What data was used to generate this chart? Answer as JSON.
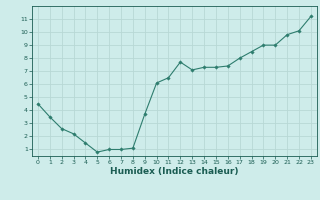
{
  "x": [
    0,
    1,
    2,
    3,
    4,
    5,
    6,
    7,
    8,
    9,
    10,
    11,
    12,
    13,
    14,
    15,
    16,
    17,
    18,
    19,
    20,
    21,
    22,
    23
  ],
  "y": [
    4.5,
    3.5,
    2.6,
    2.2,
    1.5,
    0.8,
    1.0,
    1.0,
    1.1,
    3.7,
    6.1,
    6.5,
    7.7,
    7.1,
    7.3,
    7.3,
    7.4,
    8.0,
    8.5,
    9.0,
    9.0,
    9.8,
    10.1,
    11.2
  ],
  "line_color": "#2e7d6e",
  "marker": "D",
  "marker_size": 1.8,
  "bg_color": "#ceecea",
  "grid_color": "#b8d8d5",
  "axis_label_color": "#1a5c52",
  "xlabel": "Humidex (Indice chaleur)",
  "xlim": [
    -0.5,
    23.5
  ],
  "ylim": [
    0.5,
    12.0
  ],
  "yticks": [
    1,
    2,
    3,
    4,
    5,
    6,
    7,
    8,
    9,
    10,
    11
  ],
  "xticks": [
    0,
    1,
    2,
    3,
    4,
    5,
    6,
    7,
    8,
    9,
    10,
    11,
    12,
    13,
    14,
    15,
    16,
    17,
    18,
    19,
    20,
    21,
    22,
    23
  ],
  "tick_fontsize": 4.5,
  "xlabel_fontsize": 6.5,
  "linewidth": 0.8
}
